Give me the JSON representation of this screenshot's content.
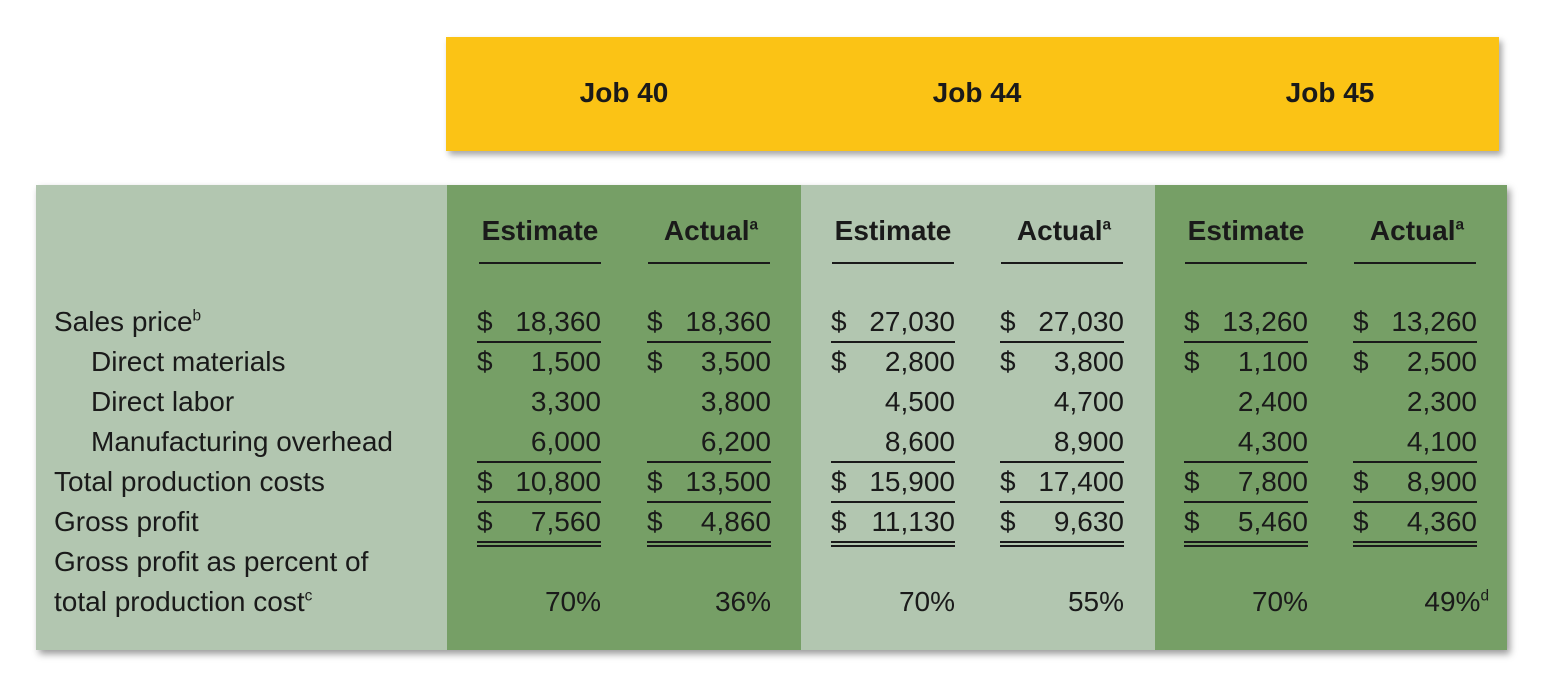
{
  "jobs": [
    {
      "title": "Job 40"
    },
    {
      "title": "Job 44"
    },
    {
      "title": "Job 45"
    }
  ],
  "column_headers": {
    "estimate": "Estimate",
    "actual": "Actual",
    "actual_note": "a"
  },
  "row_labels": {
    "sales_price": "Sales price",
    "sales_price_note": "b",
    "direct_materials": "Direct materials",
    "direct_labor": "Direct labor",
    "manufacturing_overhead": "Manufacturing overhead",
    "total_production_costs": "Total production costs",
    "gross_profit": "Gross profit",
    "gp_percent_line1": "Gross profit as percent of",
    "gp_percent_line2": "total production cost",
    "gp_percent_note": "c"
  },
  "currency_symbol": "$",
  "columns": [
    {
      "sales_price": "18,360",
      "direct_materials": "1,500",
      "direct_labor": "3,300",
      "manufacturing_overhead": "6,000",
      "total_production_costs": "10,800",
      "gross_profit": "7,560",
      "gp_percent": "70%",
      "gp_percent_note": ""
    },
    {
      "sales_price": "18,360",
      "direct_materials": "3,500",
      "direct_labor": "3,800",
      "manufacturing_overhead": "6,200",
      "total_production_costs": "13,500",
      "gross_profit": "4,860",
      "gp_percent": "36%",
      "gp_percent_note": ""
    },
    {
      "sales_price": "27,030",
      "direct_materials": "2,800",
      "direct_labor": "4,500",
      "manufacturing_overhead": "8,600",
      "total_production_costs": "15,900",
      "gross_profit": "11,130",
      "gp_percent": "70%",
      "gp_percent_note": ""
    },
    {
      "sales_price": "27,030",
      "direct_materials": "3,800",
      "direct_labor": "4,700",
      "manufacturing_overhead": "8,900",
      "total_production_costs": "17,400",
      "gross_profit": "9,630",
      "gp_percent": "55%",
      "gp_percent_note": ""
    },
    {
      "sales_price": "13,260",
      "direct_materials": "1,100",
      "direct_labor": "2,400",
      "manufacturing_overhead": "4,300",
      "total_production_costs": "7,800",
      "gross_profit": "5,460",
      "gp_percent": "70%",
      "gp_percent_note": ""
    },
    {
      "sales_price": "13,260",
      "direct_materials": "2,500",
      "direct_labor": "2,300",
      "manufacturing_overhead": "4,100",
      "total_production_costs": "8,900",
      "gross_profit": "4,360",
      "gp_percent": "49%",
      "gp_percent_note": "d"
    }
  ],
  "colors": {
    "banner": "#fbc315",
    "dark_green": "#769f66",
    "light_green": "#b2c6b0"
  }
}
